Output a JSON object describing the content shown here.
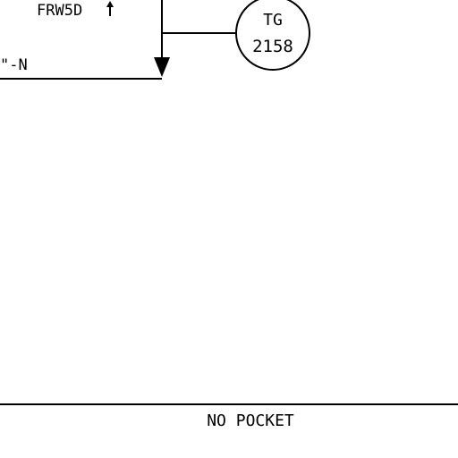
{
  "drawing": {
    "labels": {
      "line_tag": "FRW5D",
      "flow_up_icon": "arrow-up-icon",
      "line_size_fragment": "\"-N",
      "note": "NO POCKET"
    },
    "instrument": {
      "function": "TG",
      "number": "2158"
    },
    "arrow_icon": "arrow-down-icon",
    "colors": {
      "ink": "#000000",
      "paper": "#ffffff"
    }
  }
}
